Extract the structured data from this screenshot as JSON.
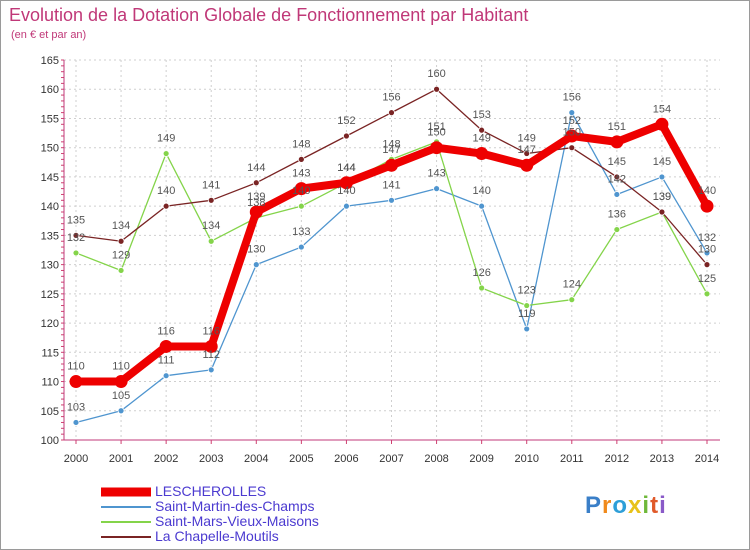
{
  "header": {
    "title": "Evolution de la Dotation Globale de Fonctionnement par Habitant",
    "subtitle": "(en € et par an)"
  },
  "logo": {
    "letters": [
      "P",
      "r",
      "o",
      "x",
      "i",
      "t",
      "i"
    ],
    "colors": [
      "#3a7fc8",
      "#f08a1c",
      "#2e9fd8",
      "#e8c21a",
      "#6fb83a",
      "#e05a2a",
      "#8a5ac8"
    ]
  },
  "chart_data": {
    "type": "line",
    "title": "Evolution de la Dotation Globale de Fonctionnement par Habitant",
    "subtitle": "(en € et par an)",
    "x": [
      "2000",
      "2001",
      "2002",
      "2003",
      "2004",
      "2005",
      "2006",
      "2007",
      "2008",
      "2009",
      "2010",
      "2011",
      "2012",
      "2013",
      "2014"
    ],
    "ylim": [
      100,
      165
    ],
    "yticks": [
      100,
      105,
      110,
      115,
      120,
      125,
      130,
      135,
      140,
      145,
      150,
      155,
      160,
      165
    ],
    "grid": true,
    "legend_position": "bottom-left",
    "series": [
      {
        "name": "LESCHEROLLES",
        "color": "#ee0000",
        "emphasis": true,
        "values": [
          110,
          110,
          116,
          116,
          139,
          143,
          144,
          147,
          150,
          149,
          147,
          152,
          151,
          154,
          140
        ]
      },
      {
        "name": "Saint-Martin-des-Champs",
        "color": "#4f95cf",
        "emphasis": false,
        "values": [
          103,
          105,
          111,
          112,
          130,
          133,
          140,
          141,
          143,
          140,
          119,
          156,
          142,
          145,
          132
        ]
      },
      {
        "name": "Saint-Mars-Vieux-Maisons",
        "color": "#84d44a",
        "emphasis": false,
        "values": [
          132,
          129,
          149,
          134,
          138,
          140,
          144,
          148,
          151,
          126,
          123,
          124,
          136,
          139,
          125
        ]
      },
      {
        "name": "La Chapelle-Moutils",
        "color": "#7a2424",
        "emphasis": false,
        "values": [
          135,
          134,
          140,
          141,
          144,
          148,
          152,
          156,
          160,
          153,
          149,
          150,
          145,
          139,
          130
        ]
      }
    ]
  }
}
